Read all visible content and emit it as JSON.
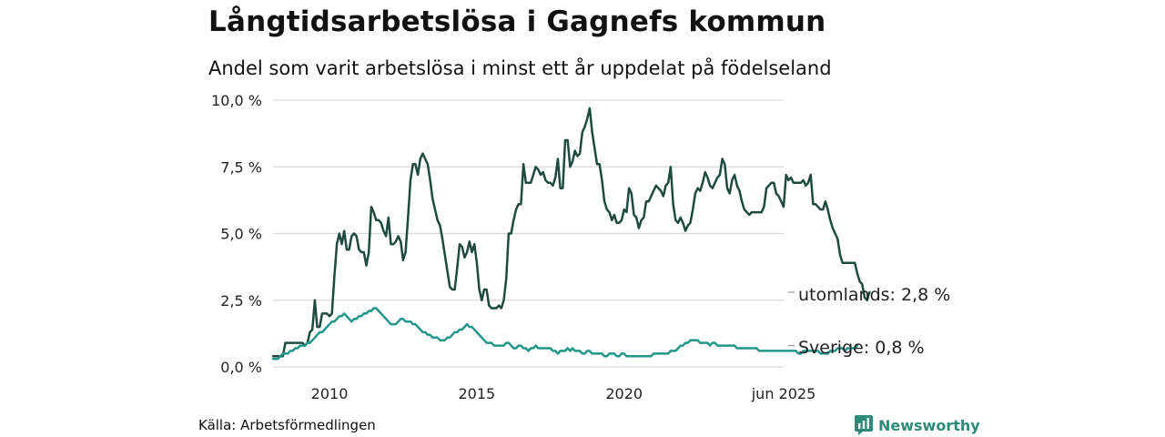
{
  "title": "Långtidsarbetslösa i Gagnefs kommun",
  "subtitle": "Andel som varit arbetslösa i minst ett år uppdelat på födelseland",
  "source": "Källa: Arbetsförmedlingen",
  "brand": "Newsworthy",
  "colors": {
    "utomlands": "#1f4a40",
    "sverige": "#23968a",
    "grid": "#d9d9d9",
    "brand": "#2e8b7a"
  },
  "chart_data": {
    "type": "line",
    "x_start": "2008-02",
    "x_end": "2025-06",
    "frequency": "monthly",
    "xtick_labels": [
      "2010",
      "2015",
      "2020",
      "jun 2025"
    ],
    "ytick_labels": [
      "0,0 %",
      "2,5 %",
      "5,0 %",
      "7,5 %",
      "10,0 %"
    ],
    "yticks": [
      0,
      2.5,
      5.0,
      7.5,
      10.0
    ],
    "ylim": [
      0,
      10
    ],
    "grid": "horizontal",
    "series": [
      {
        "name": "utomlands",
        "end_label": "utomlands: 2,8 %",
        "values": [
          0.4,
          0.4,
          0.4,
          0.4,
          0.4,
          0.9,
          0.9,
          0.9,
          0.9,
          0.9,
          0.9,
          0.9,
          0.9,
          0.8,
          0.9,
          1.3,
          1.4,
          2.5,
          1.5,
          1.5,
          2.0,
          2.0,
          2.0,
          1.9,
          2.0,
          3.4,
          4.6,
          5.0,
          4.6,
          5.1,
          4.4,
          4.4,
          4.9,
          5.0,
          4.9,
          4.4,
          4.3,
          4.3,
          3.8,
          4.3,
          6.0,
          5.8,
          5.5,
          5.5,
          5.4,
          5.1,
          4.9,
          5.6,
          4.6,
          4.6,
          4.7,
          4.9,
          4.7,
          4.0,
          4.3,
          5.6,
          7.0,
          7.6,
          7.6,
          7.2,
          7.8,
          8.0,
          7.8,
          7.6,
          7.0,
          6.3,
          5.9,
          5.5,
          5.3,
          4.8,
          4.2,
          3.6,
          3.0,
          2.9,
          2.9,
          3.7,
          4.6,
          4.5,
          4.1,
          4.3,
          4.7,
          4.3,
          4.6,
          3.9,
          2.9,
          2.5,
          2.9,
          2.9,
          2.3,
          2.2,
          2.2,
          2.2,
          2.3,
          2.2,
          2.5,
          3.3,
          5.0,
          5.0,
          5.5,
          5.9,
          6.1,
          6.1,
          7.6,
          6.9,
          6.9,
          6.9,
          7.2,
          7.5,
          7.4,
          7.2,
          7.3,
          7.0,
          6.9,
          6.9,
          6.8,
          7.1,
          7.8,
          6.7,
          6.7,
          8.5,
          8.5,
          7.5,
          7.7,
          8.1,
          7.9,
          8.0,
          8.8,
          9.0,
          9.3,
          9.7,
          8.8,
          8.2,
          7.6,
          7.6,
          7.0,
          6.2,
          5.9,
          5.8,
          5.5,
          5.7,
          5.4,
          5.4,
          5.5,
          5.9,
          5.8,
          6.7,
          6.5,
          5.7,
          5.6,
          5.2,
          5.5,
          5.6,
          6.2,
          6.2,
          6.4,
          6.6,
          6.8,
          6.7,
          6.6,
          6.4,
          6.8,
          6.9,
          7.5,
          6.1,
          5.5,
          5.4,
          5.6,
          5.4,
          5.1,
          5.3,
          5.4,
          5.9,
          6.5,
          6.7,
          6.6,
          6.9,
          7.3,
          7.1,
          6.8,
          6.7,
          6.9,
          7.1,
          7.2,
          7.8,
          7.6,
          6.7,
          6.5,
          7.0,
          7.2,
          6.8,
          6.6,
          6.2,
          5.9,
          5.8,
          5.7,
          5.8,
          5.8,
          5.8,
          5.8,
          5.8,
          6.0,
          6.7,
          6.8,
          6.9,
          6.9,
          6.5,
          6.4,
          6.2,
          6.0,
          7.2,
          7.0,
          7.1,
          6.9,
          6.9,
          6.9,
          6.9,
          7.0,
          6.8,
          6.9,
          7.2,
          6.1,
          6.1,
          6.0,
          5.9,
          5.9,
          6.2,
          5.9,
          5.5,
          5.2,
          5.0,
          4.8,
          4.2,
          3.9,
          3.9,
          3.9,
          3.9,
          3.9,
          3.9,
          3.5,
          3.2,
          3.1,
          2.6,
          2.5,
          2.8
        ]
      },
      {
        "name": "Sverige",
        "end_label": "Sverige: 0,8 %",
        "values": [
          0.3,
          0.3,
          0.3,
          0.4,
          0.5,
          0.5,
          0.5,
          0.6,
          0.6,
          0.7,
          0.7,
          0.8,
          0.8,
          0.8,
          0.9,
          0.9,
          1.0,
          1.1,
          1.2,
          1.3,
          1.3,
          1.4,
          1.5,
          1.6,
          1.7,
          1.7,
          1.8,
          1.9,
          1.9,
          2.0,
          1.9,
          1.8,
          1.7,
          1.8,
          1.8,
          1.9,
          1.9,
          2.0,
          2.0,
          2.1,
          2.1,
          2.2,
          2.2,
          2.1,
          2.0,
          1.9,
          1.8,
          1.7,
          1.6,
          1.6,
          1.6,
          1.7,
          1.8,
          1.8,
          1.7,
          1.7,
          1.7,
          1.6,
          1.6,
          1.5,
          1.4,
          1.3,
          1.3,
          1.2,
          1.2,
          1.1,
          1.1,
          1.1,
          1.0,
          1.0,
          1.0,
          1.1,
          1.1,
          1.2,
          1.3,
          1.3,
          1.4,
          1.4,
          1.5,
          1.6,
          1.5,
          1.5,
          1.4,
          1.3,
          1.2,
          1.1,
          1.0,
          0.9,
          0.9,
          0.9,
          0.8,
          0.8,
          0.8,
          0.8,
          0.8,
          0.9,
          0.9,
          0.8,
          0.7,
          0.7,
          0.8,
          0.8,
          0.7,
          0.7,
          0.6,
          0.7,
          0.7,
          0.8,
          0.7,
          0.7,
          0.7,
          0.7,
          0.7,
          0.7,
          0.6,
          0.6,
          0.5,
          0.6,
          0.6,
          0.6,
          0.7,
          0.6,
          0.7,
          0.6,
          0.6,
          0.6,
          0.5,
          0.5,
          0.6,
          0.6,
          0.5,
          0.5,
          0.5,
          0.5,
          0.5,
          0.4,
          0.4,
          0.5,
          0.5,
          0.5,
          0.4,
          0.4,
          0.5,
          0.5,
          0.4,
          0.4,
          0.4,
          0.4,
          0.4,
          0.4,
          0.4,
          0.4,
          0.4,
          0.4,
          0.4,
          0.5,
          0.5,
          0.5,
          0.5,
          0.5,
          0.5,
          0.5,
          0.6,
          0.6,
          0.6,
          0.7,
          0.8,
          0.8,
          0.9,
          0.9,
          1.0,
          1.0,
          1.0,
          1.0,
          0.9,
          0.9,
          0.9,
          0.9,
          0.8,
          0.9,
          0.9,
          0.8,
          0.8,
          0.8,
          0.8,
          0.8,
          0.8,
          0.8,
          0.8,
          0.7,
          0.7,
          0.7,
          0.7,
          0.7,
          0.7,
          0.7,
          0.7,
          0.7,
          0.6,
          0.6,
          0.6,
          0.6,
          0.6,
          0.6,
          0.6,
          0.6,
          0.6,
          0.6,
          0.6,
          0.6,
          0.6,
          0.6,
          0.6,
          0.6,
          0.5,
          0.5,
          0.6,
          0.6,
          0.6,
          0.6,
          0.6,
          0.6,
          0.6,
          0.5,
          0.5,
          0.5,
          0.5,
          0.6,
          0.6,
          0.6,
          0.7,
          0.7,
          0.7,
          0.6,
          0.7,
          0.7,
          0.7,
          0.7,
          0.8
        ]
      }
    ]
  }
}
